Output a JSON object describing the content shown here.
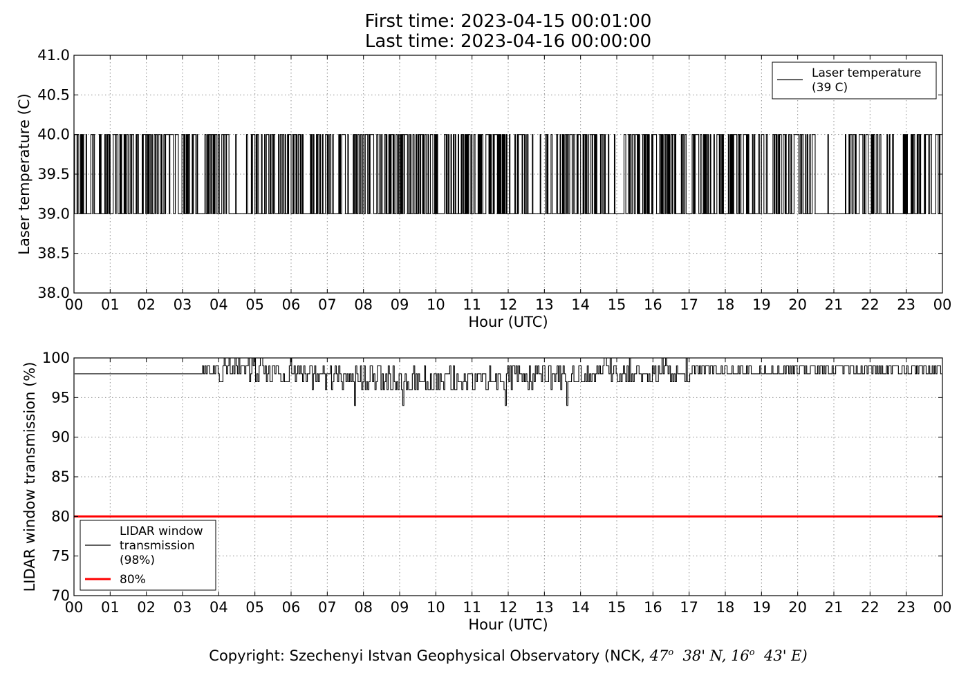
{
  "header": {
    "first_time": "First time: 2023-04-15 00:01:00",
    "last_time": "Last time: 2023-04-16 00:00:00"
  },
  "copyright": {
    "prefix": "Copyright: Szechenyi Istvan Geophysical Observatory (NCK, ",
    "lat_deg": "47",
    "lat_min": "38' N, ",
    "lon_deg": "16",
    "lon_min": "43' E)",
    "degree_mark": "o"
  },
  "chart_data": [
    {
      "type": "line",
      "xlabel": "Hour (UTC)",
      "ylabel": "Laser temperature (C)",
      "xlim": [
        0,
        24
      ],
      "ylim": [
        38.0,
        41.0
      ],
      "x_ticks": [
        "00",
        "01",
        "02",
        "03",
        "04",
        "05",
        "06",
        "07",
        "08",
        "09",
        "10",
        "11",
        "12",
        "13",
        "14",
        "15",
        "16",
        "17",
        "18",
        "19",
        "20",
        "21",
        "22",
        "23",
        "00"
      ],
      "y_ticks": [
        "38.0",
        "38.5",
        "39.0",
        "39.5",
        "40.0",
        "40.5",
        "41.0"
      ],
      "grid": true,
      "legend_position": "upper right",
      "series": [
        {
          "name": "Laser temperature\n(39 C)",
          "color": "#000000",
          "sampling": "approx. 1 value per minute, 00:01-24:00 UTC",
          "levels": [
            39.0,
            40.0
          ],
          "approx_pattern": "frequent switching between 39.0 and 40.0 C; mostly 39.0 at about 04.3-04.9, 12.6-13.0, 20.5-21.3 h",
          "values_summary": {
            "min": 39.0,
            "max": 40.0
          }
        }
      ]
    },
    {
      "type": "line",
      "xlabel": "Hour (UTC)",
      "ylabel": "LIDAR window transmission (%)",
      "xlim": [
        0,
        24
      ],
      "ylim": [
        70,
        100
      ],
      "x_ticks": [
        "00",
        "01",
        "02",
        "03",
        "04",
        "05",
        "06",
        "07",
        "08",
        "09",
        "10",
        "11",
        "12",
        "13",
        "14",
        "15",
        "16",
        "17",
        "18",
        "19",
        "20",
        "21",
        "22",
        "23",
        "00"
      ],
      "y_ticks": [
        "70",
        "75",
        "80",
        "85",
        "90",
        "95",
        "100"
      ],
      "grid": true,
      "legend_position": "lower left",
      "series": [
        {
          "name": "LIDAR window\ntransmission\n(98%)",
          "color": "#000000",
          "sampling": "approx. 1 value per minute",
          "approx_profile": [
            [
              0,
              98
            ],
            [
              1,
              98
            ],
            [
              2,
              98
            ],
            [
              3,
              98
            ],
            [
              4,
              98.5
            ],
            [
              5,
              98.5
            ],
            [
              6,
              98
            ],
            [
              7,
              97.8
            ],
            [
              8,
              97.3
            ],
            [
              9,
              97.2
            ],
            [
              10,
              97.3
            ],
            [
              11,
              97.4
            ],
            [
              12,
              97.6
            ],
            [
              13,
              97.8
            ],
            [
              14,
              98
            ],
            [
              15,
              98.2
            ],
            [
              16,
              98.3
            ],
            [
              17,
              98.6
            ],
            [
              18,
              98.3
            ],
            [
              19,
              98.5
            ],
            [
              20,
              98.6
            ],
            [
              21,
              98.5
            ],
            [
              22,
              98.6
            ],
            [
              23,
              98.6
            ],
            [
              24,
              98.5
            ]
          ],
          "values_summary": {
            "min": 94,
            "max": 100
          }
        },
        {
          "name": "80%",
          "color": "#ff0000",
          "x": [
            0,
            24
          ],
          "values": [
            80,
            80
          ]
        }
      ]
    }
  ]
}
